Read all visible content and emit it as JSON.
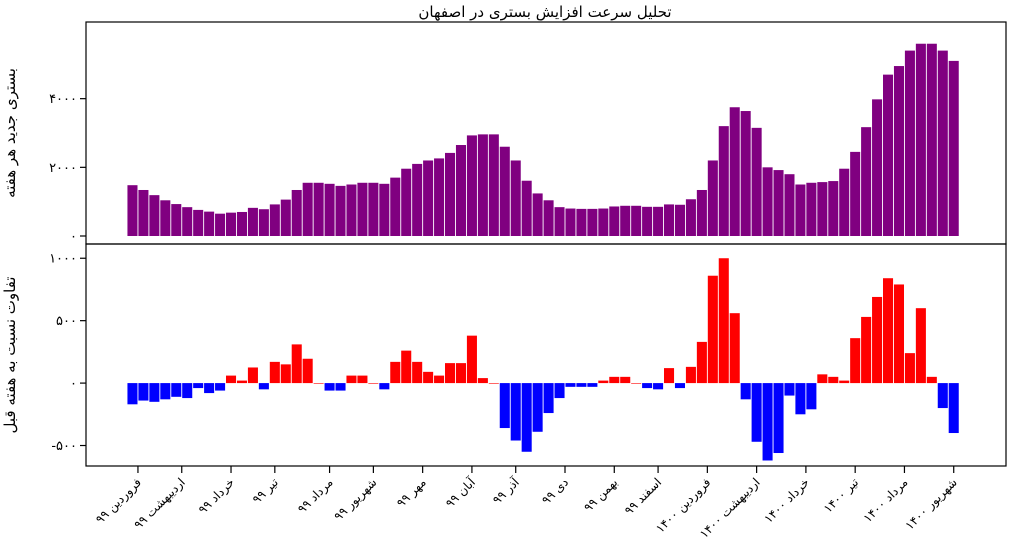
{
  "chart_data": {
    "type": "bar",
    "title": "تحلیل سرعت افزایش بستری در اصفهان",
    "panels": [
      {
        "ylabel": "بستری جدید هر هفته",
        "ylim": [
          0,
          6000
        ],
        "yticks": [
          0,
          2000,
          4000
        ],
        "ytick_labels": [
          "۰",
          "۲۰۰۰",
          "۴۰۰۰"
        ],
        "color": "#800080",
        "values": [
          1480,
          1340,
          1190,
          1040,
          930,
          840,
          760,
          710,
          650,
          680,
          700,
          820,
          780,
          920,
          1060,
          1340,
          1550,
          1550,
          1520,
          1460,
          1500,
          1550,
          1550,
          1520,
          1700,
          1960,
          2100,
          2200,
          2260,
          2420,
          2650,
          2930,
          2960,
          2960,
          2600,
          2200,
          1610,
          1240,
          1040,
          840,
          800,
          790,
          790,
          800,
          860,
          880,
          880,
          850,
          850,
          920,
          910,
          1070,
          1340,
          2200,
          3200,
          3750,
          3640,
          3150,
          2000,
          1920,
          1800,
          1500,
          1550,
          1570,
          1600,
          1960,
          2450,
          3170,
          3980,
          4700,
          4950,
          5400,
          5600,
          5600,
          5400,
          5100
        ]
      },
      {
        "ylabel": "تفاوت نسبت به هفته قبل",
        "ylim": [
          -600,
          1050
        ],
        "yticks": [
          -500,
          0,
          500,
          1000
        ],
        "ytick_labels": [
          "-۵۰۰",
          "۰",
          "۵۰۰",
          "۱۰۰۰"
        ],
        "positive_color": "#ff0000",
        "negative_color": "#0000ff",
        "values": [
          -170,
          -140,
          -150,
          -130,
          -110,
          -120,
          -40,
          -80,
          -60,
          60,
          20,
          125,
          -50,
          170,
          150,
          310,
          195,
          0,
          -60,
          -60,
          60,
          60,
          0,
          -50,
          170,
          260,
          170,
          90,
          60,
          160,
          160,
          380,
          40,
          0,
          -360,
          -460,
          -550,
          -390,
          -240,
          -120,
          -30,
          -30,
          -30,
          20,
          50,
          50,
          0,
          -40,
          -50,
          120,
          -40,
          130,
          330,
          860,
          1000,
          560,
          -130,
          -470,
          -620,
          -560,
          -100,
          -250,
          -210,
          70,
          50,
          20,
          360,
          530,
          690,
          840,
          790,
          240,
          600,
          50,
          -200,
          -400
        ]
      }
    ],
    "x_ticks": [
      {
        "label": "فروردین ۹۹",
        "index": 0.5
      },
      {
        "label": "اردیبهشت ۹۹",
        "index": 4.5
      },
      {
        "label": "خرداد ۹۹",
        "index": 9
      },
      {
        "label": "تیر ۹۹",
        "index": 13
      },
      {
        "label": "مرداد ۹۹",
        "index": 18
      },
      {
        "label": "شهریور ۹۹",
        "index": 22
      },
      {
        "label": "مهر ۹۹",
        "index": 26.5
      },
      {
        "label": "آبان ۹۹",
        "index": 31
      },
      {
        "label": "آذر ۹۹",
        "index": 35
      },
      {
        "label": "دی ۹۹",
        "index": 39.5
      },
      {
        "label": "بهمن ۹۹",
        "index": 44
      },
      {
        "label": "اسفند ۹۹",
        "index": 48
      },
      {
        "label": "فروردین ۱۴۰۰",
        "index": 52.5
      },
      {
        "label": "اردیبهشت ۱۴۰۰",
        "index": 57
      },
      {
        "label": "خرداد ۱۴۰۰",
        "index": 61.5
      },
      {
        "label": "تیر ۱۴۰۰",
        "index": 66
      },
      {
        "label": "مرداد ۱۴۰۰",
        "index": 70.5
      },
      {
        "label": "شهریور ۱۴۰۰",
        "index": 75
      }
    ]
  }
}
